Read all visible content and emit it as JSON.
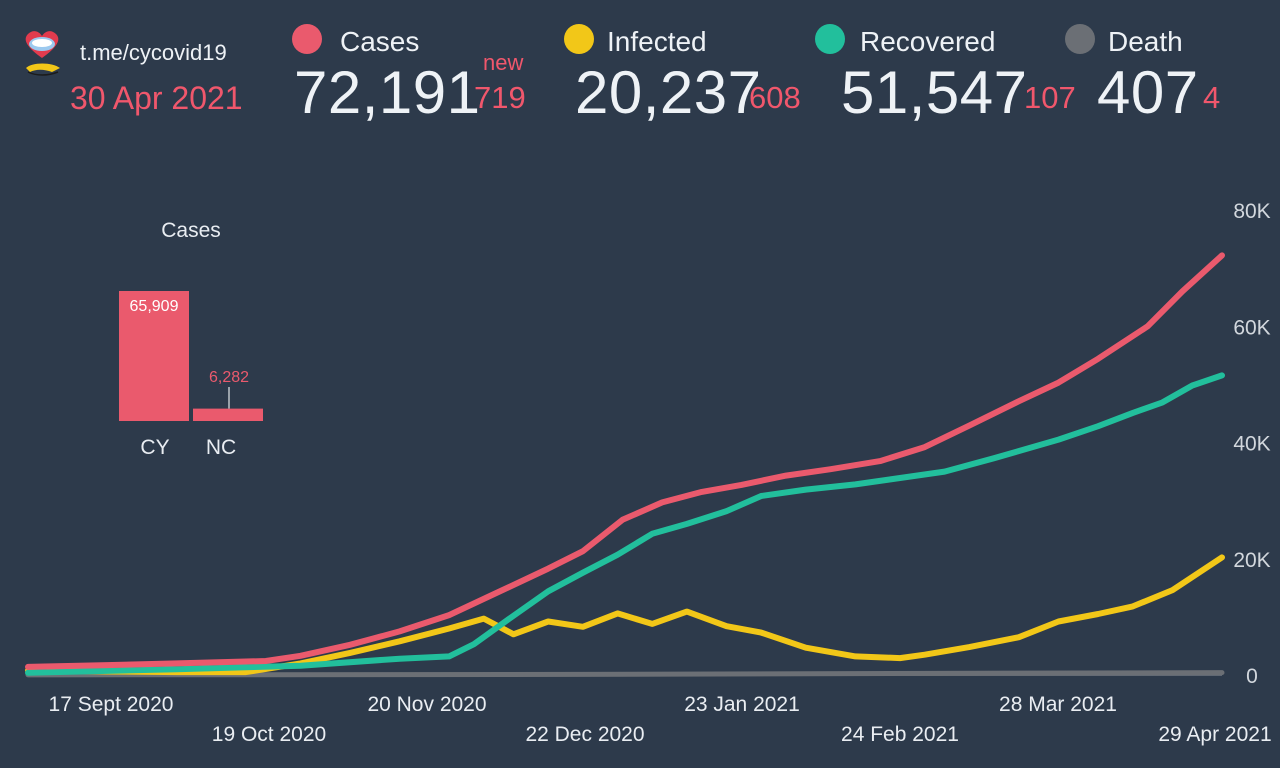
{
  "header": {
    "channel": "t.me/cycovid19",
    "date": "30 Apr 2021",
    "new_label": "new"
  },
  "stats": [
    {
      "key": "cases",
      "label": "Cases",
      "value": "72,191",
      "delta": "719",
      "color": "#ea5a6d"
    },
    {
      "key": "infected",
      "label": "Infected",
      "value": "20,237",
      "delta": "608",
      "color": "#f2c718"
    },
    {
      "key": "recovered",
      "label": "Recovered",
      "value": "51,547",
      "delta": "107",
      "color": "#22bf9c"
    },
    {
      "key": "death",
      "label": "Death",
      "value": "407",
      "delta": "4",
      "color": "#6b6f75"
    }
  ],
  "chart_data": [
    {
      "type": "bar",
      "title": "Cases",
      "categories": [
        "CY",
        "NC"
      ],
      "values": [
        65909,
        6282
      ],
      "value_labels": [
        "65,909",
        "6,282"
      ],
      "color": "#ea5a6d"
    },
    {
      "type": "line",
      "x_ticks": [
        "17 Sept 2020",
        "19 Oct 2020",
        "20 Nov 2020",
        "22 Dec 2020",
        "23 Jan 2021",
        "24 Feb 2021",
        "28 Mar 2021",
        "29 Apr 2021"
      ],
      "y_ticks": [
        "80K",
        "60K",
        "40K",
        "20K",
        "0"
      ],
      "ylim": [
        0,
        80000
      ],
      "x_range": [
        "2020-09-01",
        "2021-04-30"
      ],
      "series": [
        {
          "name": "Cases",
          "color": "#ea5a6d",
          "x": [
            "2020-09-01",
            "2020-09-17",
            "2020-10-01",
            "2020-10-19",
            "2020-10-26",
            "2020-11-05",
            "2020-11-15",
            "2020-11-25",
            "2020-12-05",
            "2020-12-15",
            "2020-12-22",
            "2020-12-30",
            "2021-01-07",
            "2021-01-15",
            "2021-01-23",
            "2021-02-01",
            "2021-02-10",
            "2021-02-20",
            "2021-03-01",
            "2021-03-10",
            "2021-03-20",
            "2021-03-28",
            "2021-04-05",
            "2021-04-15",
            "2021-04-22",
            "2021-04-30"
          ],
          "values": [
            1400,
            1700,
            2000,
            2400,
            3300,
            5200,
            7500,
            10300,
            14300,
            18300,
            21300,
            26700,
            29700,
            31500,
            32700,
            34300,
            35400,
            36800,
            39200,
            42900,
            47100,
            50300,
            54400,
            60000,
            66000,
            72191
          ]
        },
        {
          "name": "Infected",
          "color": "#f2c718",
          "x": [
            "2020-09-01",
            "2020-09-17",
            "2020-10-01",
            "2020-10-15",
            "2020-10-26",
            "2020-11-05",
            "2020-11-15",
            "2020-11-25",
            "2020-12-02",
            "2020-12-08",
            "2020-12-15",
            "2020-12-22",
            "2020-12-29",
            "2021-01-05",
            "2021-01-12",
            "2021-01-20",
            "2021-01-27",
            "2021-02-05",
            "2021-02-15",
            "2021-02-24",
            "2021-03-01",
            "2021-03-10",
            "2021-03-20",
            "2021-03-28",
            "2021-04-05",
            "2021-04-12",
            "2021-04-20",
            "2021-04-30"
          ],
          "values": [
            800,
            600,
            500,
            500,
            2000,
            3800,
            5800,
            8000,
            9700,
            7000,
            9200,
            8300,
            10600,
            8800,
            10900,
            8400,
            7300,
            4700,
            3200,
            2900,
            3500,
            4800,
            6500,
            9200,
            10500,
            11800,
            14600,
            20237
          ]
        },
        {
          "name": "Recovered",
          "color": "#22bf9c",
          "x": [
            "2020-09-01",
            "2020-10-01",
            "2020-10-26",
            "2020-11-15",
            "2020-11-25",
            "2020-11-30",
            "2020-12-07",
            "2020-12-15",
            "2020-12-22",
            "2020-12-29",
            "2021-01-05",
            "2021-01-12",
            "2021-01-20",
            "2021-01-27",
            "2021-02-05",
            "2021-02-15",
            "2021-02-24",
            "2021-03-05",
            "2021-03-15",
            "2021-03-28",
            "2021-04-05",
            "2021-04-12",
            "2021-04-18",
            "2021-04-24",
            "2021-04-30"
          ],
          "values": [
            400,
            1000,
            1600,
            2800,
            3200,
            5300,
            9600,
            14400,
            17600,
            20700,
            24300,
            26000,
            28200,
            30800,
            31900,
            32800,
            33900,
            35000,
            37300,
            40500,
            42800,
            45100,
            46900,
            49800,
            51547
          ]
        },
        {
          "name": "Death",
          "color": "#6b6f75",
          "x": [
            "2020-09-01",
            "2020-12-22",
            "2021-04-30"
          ],
          "values": [
            20,
            100,
            407
          ]
        }
      ]
    }
  ]
}
